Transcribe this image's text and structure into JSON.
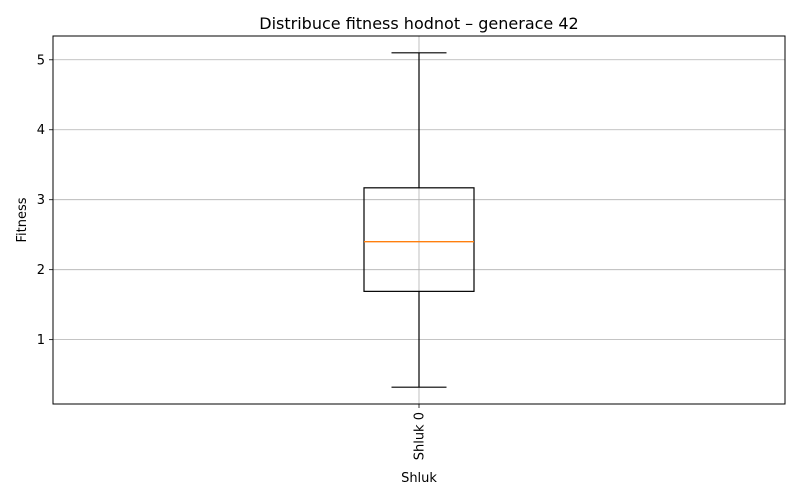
{
  "chart_data": {
    "type": "box",
    "title": "Distribuce fitness hodnot – generace 42",
    "xlabel": "Shluk",
    "ylabel": "Fitness",
    "categories": [
      "Shluk 0"
    ],
    "boxes": [
      {
        "label": "Shluk 0",
        "whisker_low": 0.32,
        "q1": 1.69,
        "median": 2.4,
        "q3": 3.17,
        "whisker_high": 5.1
      }
    ],
    "yticks": [
      1,
      2,
      3,
      4,
      5
    ],
    "ylim": [
      0.08,
      5.34
    ],
    "grid": true,
    "x_tick_rotation": 90,
    "colors": {
      "box": "#000000",
      "median": "#ff7f0e",
      "grid": "#b0b0b0"
    }
  }
}
